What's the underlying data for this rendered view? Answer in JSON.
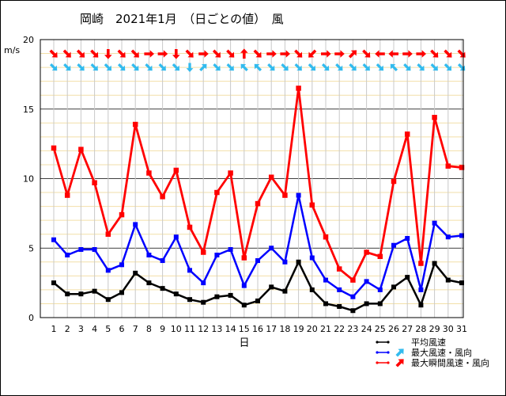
{
  "chart_data": {
    "type": "line",
    "title": "岡崎　2021年1月　（日ごとの値）　風",
    "xlabel": "日",
    "ylabel": "m/s",
    "ylim": [
      0,
      20
    ],
    "yticks": [
      0,
      5,
      10,
      15,
      20
    ],
    "grid": true,
    "legend_position": "bottom-right",
    "categories": [
      "1",
      "2",
      "3",
      "4",
      "5",
      "6",
      "7",
      "8",
      "9",
      "10",
      "11",
      "12",
      "13",
      "14",
      "15",
      "16",
      "17",
      "18",
      "19",
      "20",
      "21",
      "22",
      "23",
      "24",
      "25",
      "26",
      "27",
      "28",
      "29",
      "30",
      "31"
    ],
    "series": [
      {
        "name": "平均風速",
        "color": "#000000",
        "values": [
          2.5,
          1.7,
          1.7,
          1.9,
          1.3,
          1.8,
          3.2,
          2.5,
          2.1,
          1.7,
          1.3,
          1.1,
          1.5,
          1.6,
          0.9,
          1.2,
          2.2,
          1.9,
          4.0,
          2.0,
          1.0,
          0.8,
          0.5,
          1.0,
          1.0,
          2.2,
          2.9,
          0.9,
          3.9,
          2.7,
          2.5
        ]
      },
      {
        "name": "最大風速・風向",
        "color": "#0000ff",
        "arrow_color": "#33bbee",
        "values": [
          5.6,
          4.5,
          4.9,
          4.9,
          3.4,
          3.8,
          6.7,
          4.5,
          4.1,
          5.8,
          3.4,
          2.5,
          4.5,
          4.9,
          2.3,
          4.1,
          5.0,
          4.0,
          8.8,
          4.3,
          2.7,
          2.0,
          1.5,
          2.6,
          2.0,
          5.2,
          5.7,
          2.0,
          6.8,
          5.8,
          5.9
        ],
        "directions": [
          "NW",
          "NW",
          "NW",
          "NW",
          "NW",
          "NW",
          "NW",
          "NW",
          "NW",
          "NW",
          "N",
          "SW",
          "NW",
          "NW",
          "SE",
          "SE",
          "NW",
          "NW",
          "NW",
          "NW",
          "NW",
          "NW",
          "NW",
          "NW",
          "NW",
          "SE",
          "NW",
          "NW",
          "NW",
          "NW",
          "NW"
        ]
      },
      {
        "name": "最大瞬間風速・風向",
        "color": "#ff0000",
        "arrow_color": "#ff0000",
        "values": [
          12.2,
          8.8,
          12.1,
          9.7,
          6.0,
          7.4,
          13.9,
          10.4,
          8.7,
          10.6,
          6.5,
          4.7,
          9.0,
          10.4,
          4.3,
          8.2,
          10.1,
          8.8,
          16.5,
          8.1,
          5.8,
          3.5,
          2.7,
          4.7,
          4.4,
          9.8,
          13.2,
          3.9,
          14.4,
          10.9,
          10.8
        ],
        "directions": [
          "NW",
          "NW",
          "NW",
          "NW",
          "N",
          "NW",
          "NW",
          "W",
          "W",
          "N",
          "NW",
          "W",
          "NW",
          "NW",
          "S",
          "NW",
          "W",
          "W",
          "NW",
          "NE",
          "W",
          "W",
          "SW",
          "NW",
          "E",
          "E",
          "W",
          "W",
          "NW",
          "NW",
          "NW"
        ]
      }
    ]
  }
}
